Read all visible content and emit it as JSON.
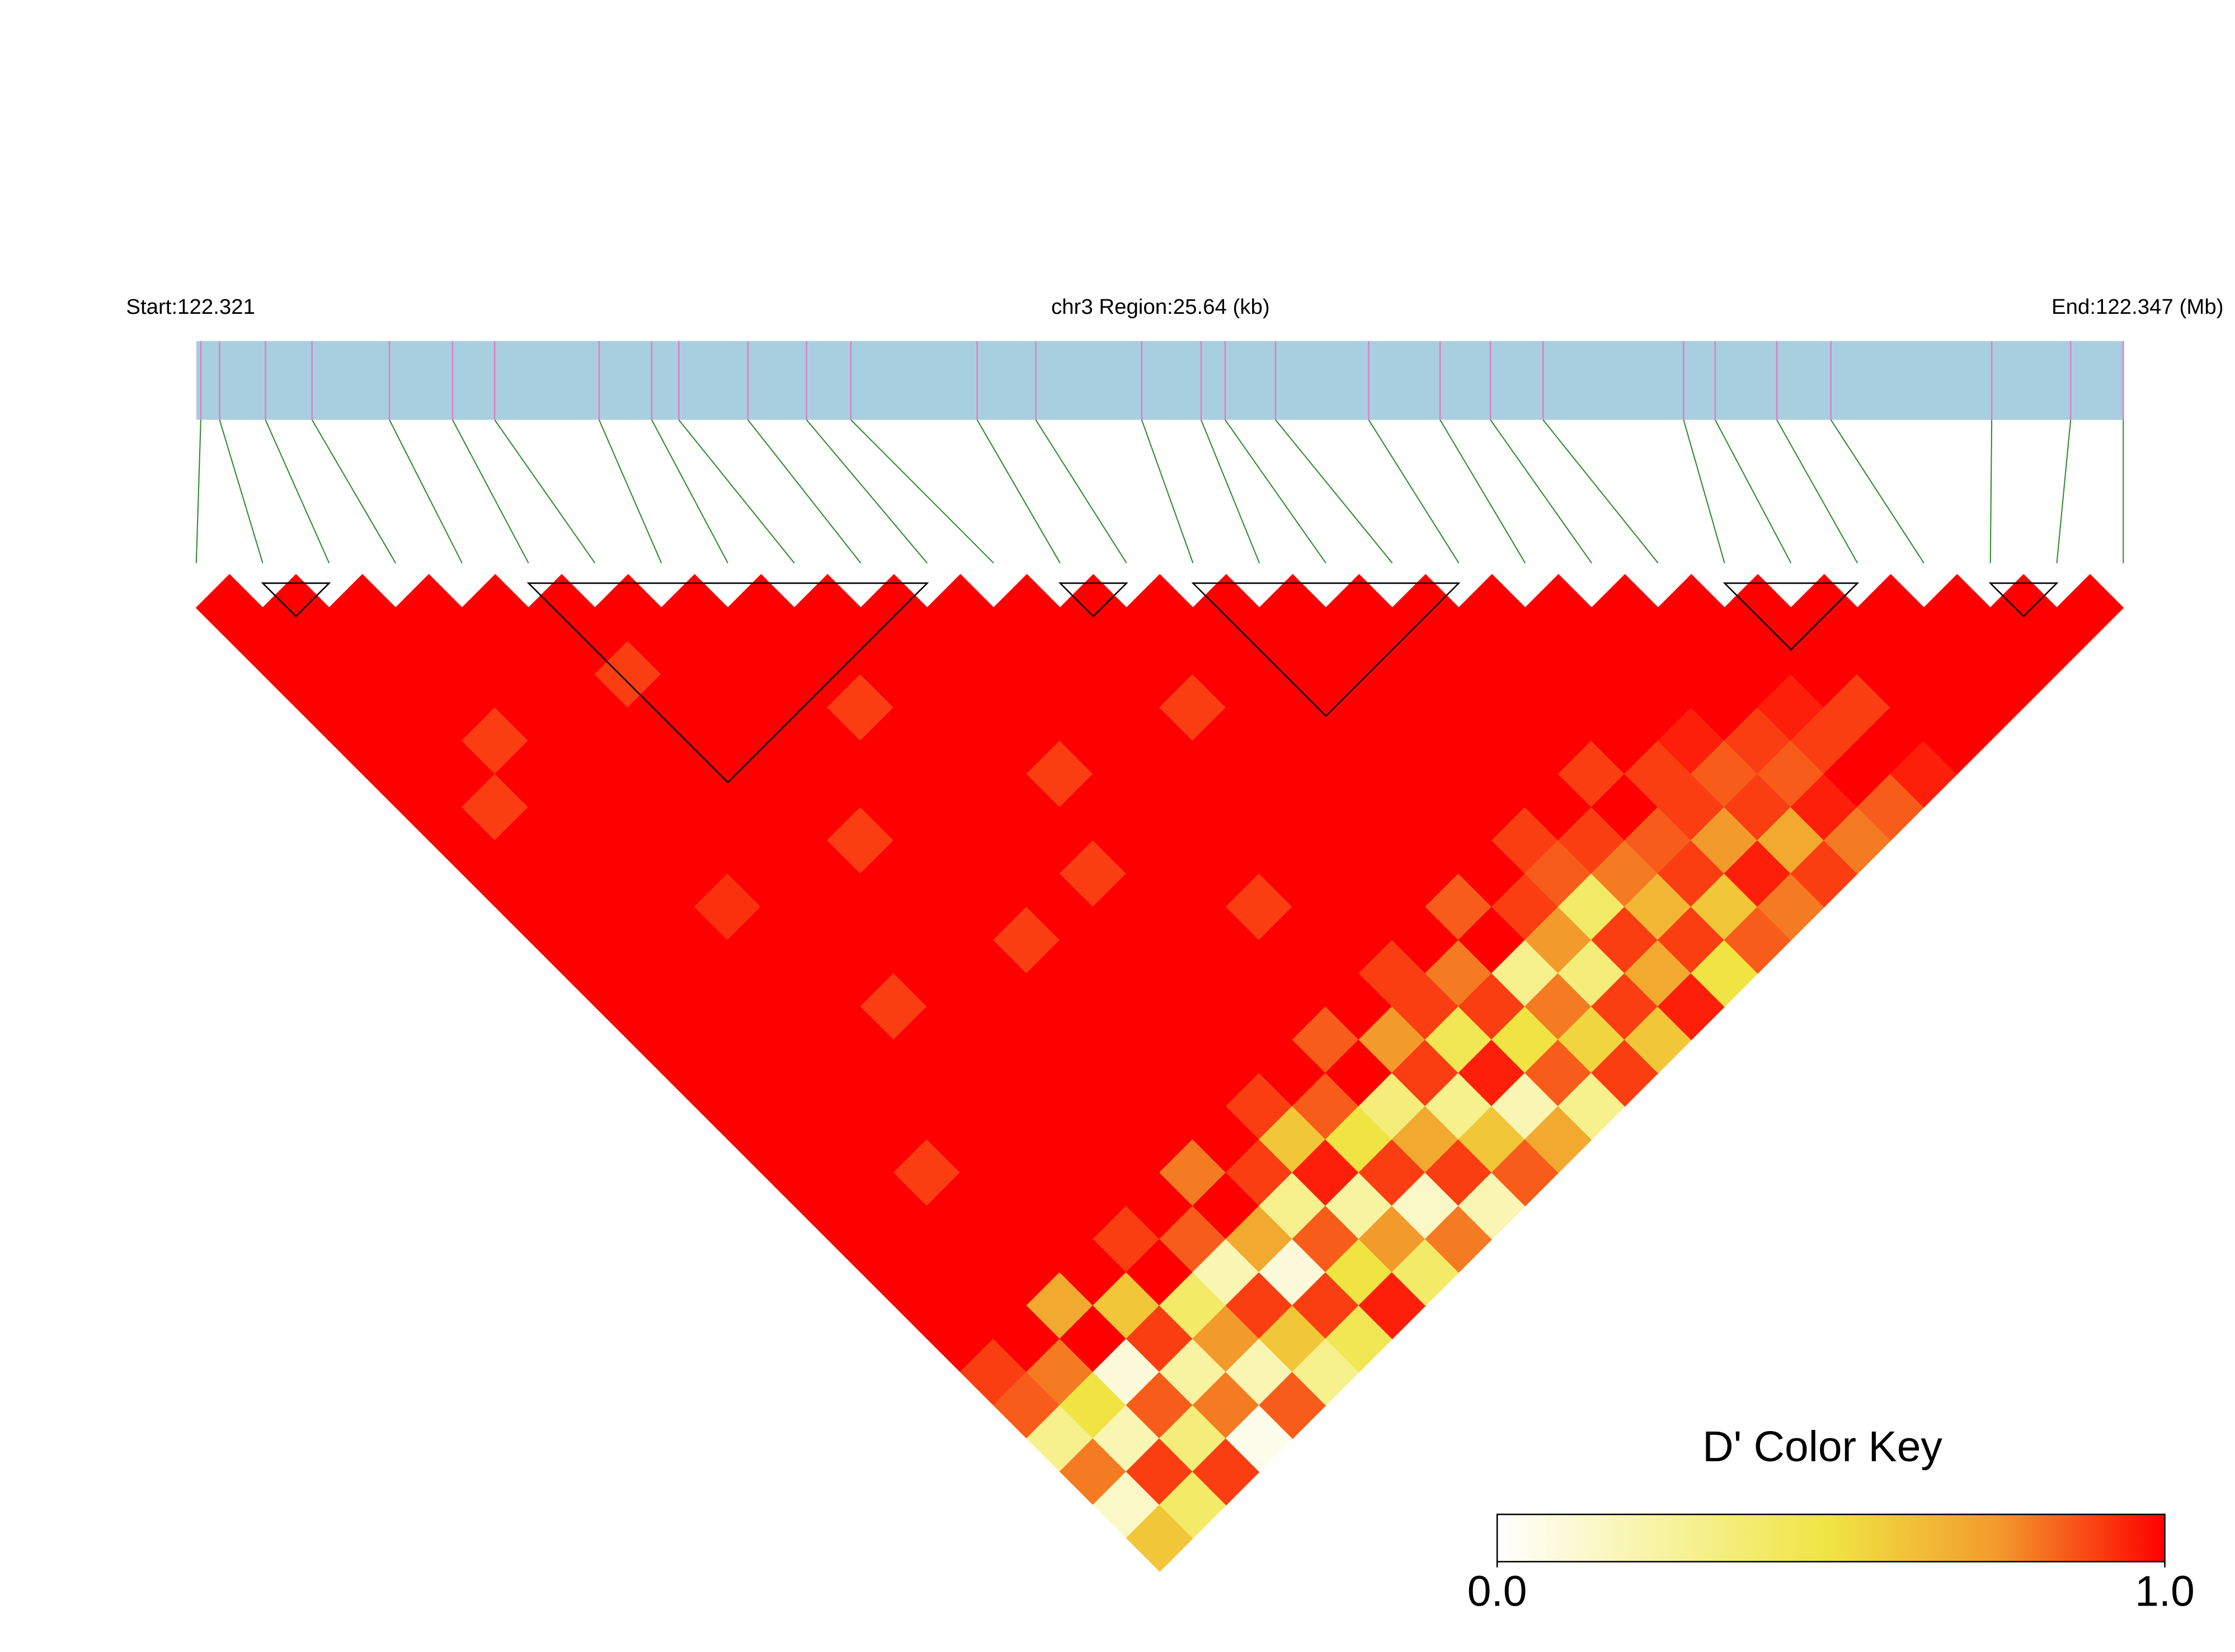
{
  "chart_data": {
    "type": "ld-heatmap",
    "title": "chr3 Region:25.64 (kb)",
    "start_label": "Start:122.321",
    "end_label": "End:122.347 (Mb)",
    "xlim": [
      0,
      25.64
    ],
    "bar_color": "#a8cfe0",
    "marker_color": "#e07fc4",
    "line_color": "#2e8b2e",
    "positions": [
      0.06,
      0.31,
      0.92,
      1.54,
      2.57,
      3.41,
      3.97,
      5.36,
      6.06,
      6.42,
      7.34,
      8.12,
      8.71,
      10.39,
      11.17,
      12.58,
      13.37,
      13.69,
      14.36,
      15.6,
      16.55,
      17.22,
      17.92,
      19.79,
      20.21,
      21.03,
      21.75,
      23.89,
      24.94,
      25.64
    ],
    "blocks": [
      [
        1,
        2
      ],
      [
        5,
        11
      ],
      [
        13,
        14
      ],
      [
        15,
        19
      ],
      [
        23,
        25
      ],
      [
        27,
        28
      ]
    ],
    "values": [
      [
        1,
        1,
        1,
        1,
        1,
        1,
        1,
        1,
        1,
        1,
        1,
        1,
        1,
        1,
        1,
        1,
        1,
        1,
        1,
        1,
        1,
        1,
        1,
        0.9,
        0.85,
        0.3,
        0.8,
        0.15,
        0.6
      ],
      [
        1,
        1,
        1,
        1,
        1,
        1,
        0.9,
        1,
        1,
        1,
        1,
        1,
        1,
        1,
        1,
        1,
        1,
        1,
        1,
        1,
        1,
        1,
        1,
        0.8,
        0.5,
        0.2,
        0.9,
        0.4
      ],
      [
        1,
        1,
        1,
        1,
        0.9,
        1,
        1,
        1,
        1,
        1,
        1,
        1,
        1,
        1,
        1,
        1,
        1,
        0.9,
        1,
        1,
        1,
        0.7,
        1,
        0.1,
        0.85,
        0.35,
        0.9
      ],
      [
        1,
        1,
        1,
        1,
        1,
        1,
        1,
        1,
        1,
        0.92,
        1,
        1,
        1,
        1,
        1,
        1,
        1,
        1,
        1,
        1,
        1,
        0.6,
        0.9,
        0.25,
        0.8,
        0.05
      ],
      [
        1,
        1,
        1,
        1,
        1,
        1,
        1,
        1,
        1,
        1,
        1,
        1,
        0.9,
        1,
        1,
        1,
        1,
        1,
        1,
        0.9,
        1,
        0.4,
        0.75,
        0.2,
        0.85
      ],
      [
        1,
        1,
        0.9,
        1,
        1,
        1,
        1,
        1,
        1,
        1,
        1,
        1,
        1,
        1,
        1,
        1,
        1,
        1,
        1,
        0.85,
        0.2,
        0.9,
        0.6,
        0.3
      ],
      [
        1,
        1,
        1,
        1,
        1,
        1,
        1,
        0.9,
        1,
        1,
        1,
        1,
        1,
        1,
        1,
        1,
        1,
        0.8,
        1,
        0.7,
        0.1,
        0.9,
        0.45
      ],
      [
        1,
        1,
        1,
        1,
        1,
        1,
        1,
        1,
        1,
        1,
        0.9,
        1,
        1,
        1,
        1,
        1,
        1,
        0.9,
        0.3,
        0.85,
        0.5,
        0.95
      ],
      [
        1,
        1,
        1,
        0.9,
        1,
        1,
        1,
        1,
        1,
        1,
        1,
        1,
        1,
        1,
        1,
        0.9,
        0.6,
        0.95,
        0.25,
        0.75,
        0.4
      ],
      [
        1,
        1,
        1,
        1,
        1,
        1,
        1,
        1,
        0.9,
        1,
        1,
        1,
        1,
        1,
        1,
        0.85,
        0.5,
        0.9,
        0.15,
        0.8
      ],
      [
        1,
        1,
        1,
        1,
        1,
        0.9,
        1,
        1,
        1,
        1,
        1,
        1,
        1,
        0.85,
        1,
        0.35,
        0.7,
        0.9,
        0.2
      ],
      [
        1,
        1,
        1,
        1,
        1,
        1,
        1,
        1,
        1,
        0.9,
        1,
        1,
        1,
        0.75,
        0.9,
        0.3,
        0.6,
        0.85
      ],
      [
        1,
        1,
        1,
        1,
        1,
        1,
        1,
        1,
        1,
        1,
        1,
        0.9,
        0.9,
        0.45,
        0.95,
        0.2,
        0.7
      ],
      [
        1,
        1,
        1,
        0.9,
        1,
        1,
        1,
        1,
        1,
        1,
        1,
        0.8,
        0.9,
        0.5,
        0.85,
        0.3
      ],
      [
        1,
        1,
        1,
        1,
        1,
        1,
        1,
        1,
        1,
        0.85,
        1,
        0.3,
        0.8,
        0.55,
        0.9
      ],
      [
        1,
        1,
        1,
        1,
        1,
        1,
        1,
        1,
        1,
        0.9,
        0.75,
        0.35,
        0.9,
        0.6
      ],
      [
        1,
        1,
        1,
        1,
        1,
        1,
        1,
        0.9,
        0.85,
        0.4,
        0.9,
        0.7,
        0.95
      ],
      [
        1,
        1,
        1,
        1,
        1,
        1,
        1,
        0.9,
        0.8,
        0.65,
        0.9,
        0.5
      ],
      [
        1,
        1,
        1,
        1,
        1,
        0.9,
        1,
        0.85,
        0.9,
        0.6,
        0.85
      ],
      [
        1,
        1,
        1,
        1,
        1,
        0.9,
        0.9,
        0.75,
        0.95,
        0.8
      ],
      [
        1,
        1,
        1,
        1,
        0.95,
        0.85,
        0.9,
        0.7,
        0.9
      ],
      [
        1,
        1,
        1,
        1,
        0.9,
        0.85,
        0.95,
        0.8
      ],
      [
        1,
        1,
        1,
        0.95,
        0.9,
        1,
        0.85
      ],
      [
        1,
        1,
        1,
        0.9,
        1,
        0.95
      ],
      [
        1,
        1,
        1,
        1,
        1
      ],
      [
        1,
        1,
        1,
        1
      ],
      [
        1,
        1,
        1
      ],
      [
        1,
        1
      ],
      [
        1
      ]
    ],
    "colorscale": [
      "#ffffff",
      "#f7f3a0",
      "#f0e442",
      "#f39a2c",
      "#ff0000"
    ],
    "color_key": {
      "title": "D' Color Key",
      "ticks": [
        {
          "value": 0,
          "label": "0.0"
        },
        {
          "value": 1,
          "label": "1.0"
        }
      ]
    }
  }
}
